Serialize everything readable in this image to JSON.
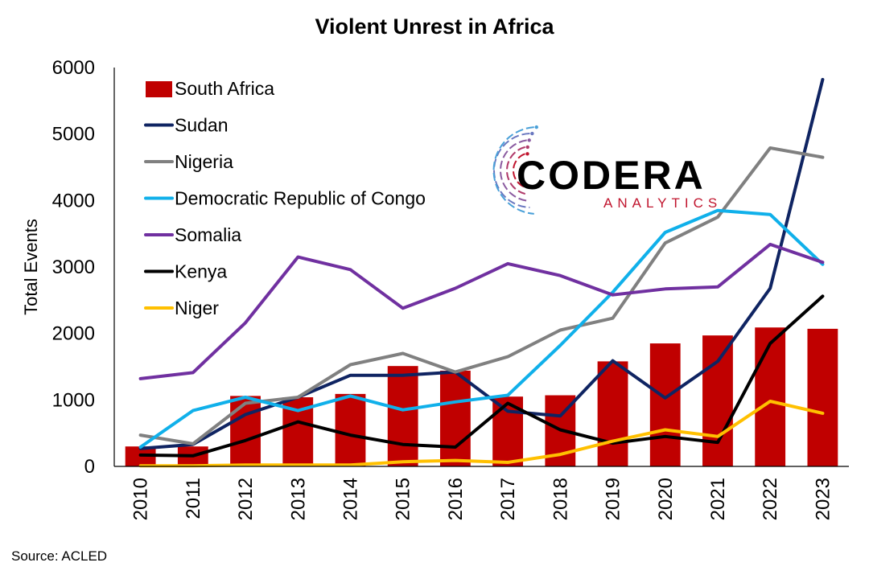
{
  "chart_data": {
    "type": "bar+line",
    "title": "Violent Unrest in Africa",
    "ylabel": "Total  Events",
    "xlabel": "",
    "ylim": [
      0,
      6000
    ],
    "yticks": [
      0,
      1000,
      2000,
      3000,
      4000,
      5000,
      6000
    ],
    "categories": [
      "2010",
      "2011",
      "2012",
      "2013",
      "2014",
      "2015",
      "2016",
      "2017",
      "2018",
      "2019",
      "2020",
      "2021",
      "2022",
      "2023"
    ],
    "legend_position": "top-left",
    "grid": false,
    "source": "Source: ACLED",
    "series": [
      {
        "name": "South Africa",
        "kind": "bar",
        "color": "#c00000",
        "values": [
          300,
          300,
          1060,
          1040,
          1090,
          1510,
          1440,
          1050,
          1070,
          1580,
          1850,
          1970,
          2090,
          2070
        ]
      },
      {
        "name": "Sudan",
        "kind": "line",
        "color": "#0f2462",
        "values": [
          270,
          330,
          780,
          1040,
          1370,
          1370,
          1420,
          830,
          760,
          1590,
          1030,
          1580,
          2680,
          5820
        ]
      },
      {
        "name": "Nigeria",
        "kind": "line",
        "color": "#808080",
        "values": [
          470,
          340,
          950,
          1040,
          1530,
          1700,
          1420,
          1650,
          2050,
          2230,
          3360,
          3750,
          4790,
          4650
        ]
      },
      {
        "name": "Democratic Republic of Congo",
        "kind": "line",
        "color": "#10b0ea",
        "values": [
          290,
          840,
          1040,
          840,
          1060,
          850,
          970,
          1070,
          1820,
          2620,
          3520,
          3850,
          3790,
          3040
        ]
      },
      {
        "name": "Somalia",
        "kind": "line",
        "color": "#7030a0",
        "values": [
          1320,
          1410,
          2160,
          3150,
          2960,
          2380,
          2680,
          3050,
          2870,
          2580,
          2670,
          2700,
          3340,
          3070
        ]
      },
      {
        "name": "Kenya",
        "kind": "line",
        "color": "#000000",
        "values": [
          170,
          160,
          390,
          670,
          470,
          330,
          290,
          950,
          550,
          350,
          450,
          360,
          1850,
          2560
        ]
      },
      {
        "name": "Niger",
        "kind": "line",
        "color": "#ffc000",
        "values": [
          10,
          10,
          20,
          20,
          20,
          70,
          90,
          60,
          180,
          380,
          550,
          450,
          980,
          800
        ]
      }
    ]
  },
  "logo": {
    "name": "CODERA",
    "subtitle": "ANALYTICS",
    "subtitle_color": "#c0142d"
  }
}
